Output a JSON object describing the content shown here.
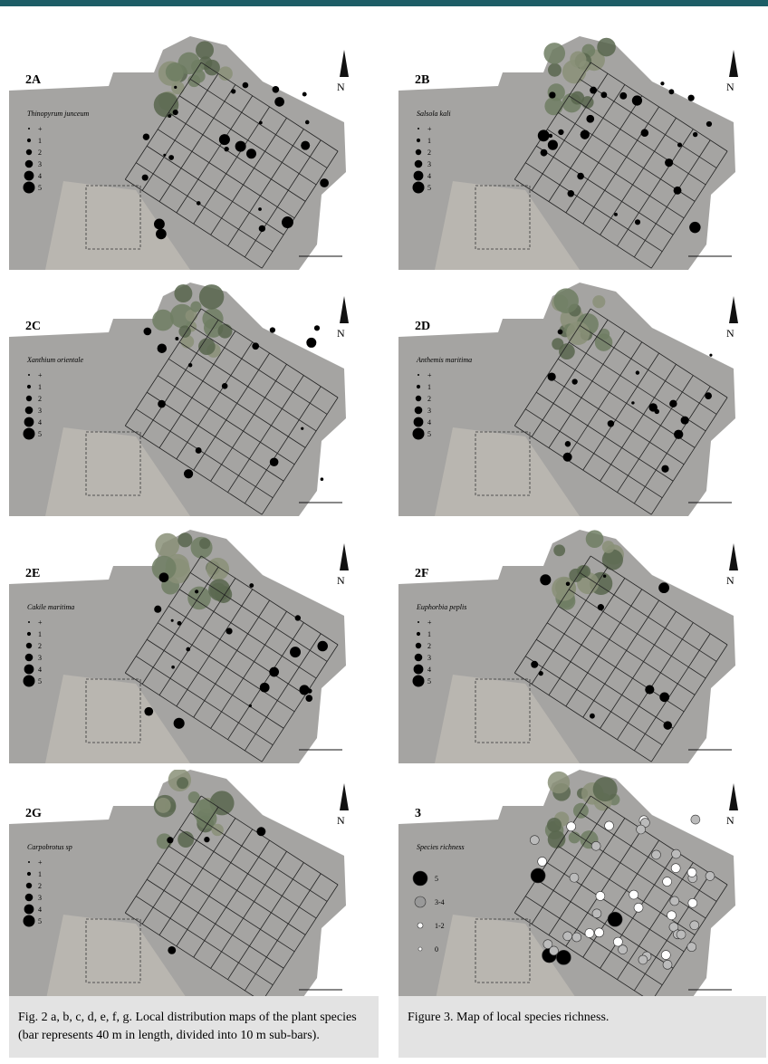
{
  "panels": [
    {
      "label": "2A",
      "species": "Thinopyrum junceum",
      "legend": [
        "+",
        "1",
        "2",
        "3",
        "4",
        "5"
      ]
    },
    {
      "label": "2B",
      "species": "Salsola kali",
      "legend": [
        "+",
        "1",
        "2",
        "3",
        "4",
        "5"
      ]
    },
    {
      "label": "2C",
      "species": "Xanthium orientale",
      "legend": [
        "+",
        "1",
        "2",
        "3",
        "4",
        "5"
      ]
    },
    {
      "label": "2D",
      "species": "Anthemis maritima",
      "legend": [
        "+",
        "1",
        "2",
        "3",
        "4",
        "5"
      ]
    },
    {
      "label": "2E",
      "species": "Cakile maritima",
      "legend": [
        "+",
        "1",
        "2",
        "3",
        "4",
        "5"
      ]
    },
    {
      "label": "2F",
      "species": "Euphorbia peplis",
      "legend": [
        "+",
        "1",
        "2",
        "3",
        "4",
        "5"
      ]
    },
    {
      "label": "2G",
      "species": "Carpobrotus sp",
      "legend": [
        "+",
        "1",
        "2",
        "3",
        "4",
        "5"
      ]
    },
    {
      "label": "3",
      "species": "Species richness",
      "legend": [
        "5",
        "3-4",
        "1-2",
        "0"
      ]
    }
  ],
  "captions": [
    "Fig. 2 a, b, c, d, e, f, g. Local distribution maps of the plant species (bar represents 40 m in length, divided into 10 m sub-bars).",
    "Figure 3. Map of local species richness."
  ]
}
